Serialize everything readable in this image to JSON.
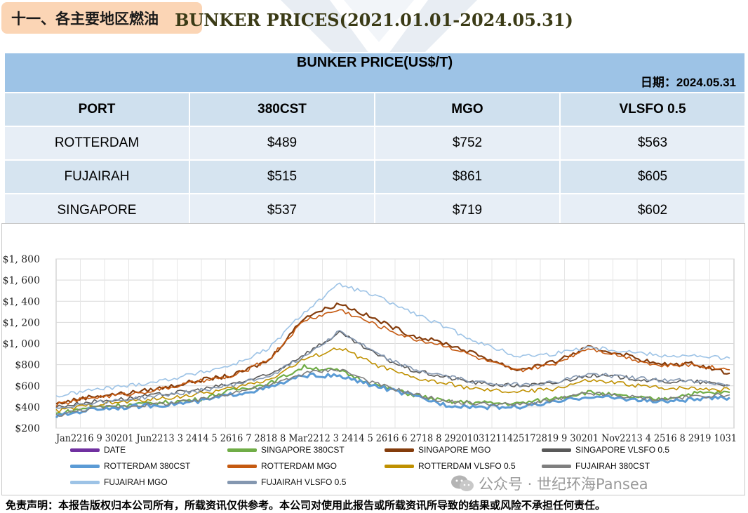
{
  "section_title": "十一、各主要地区燃油",
  "table": {
    "title": "BUNKER PRICE(US$/T)",
    "date_label": "日期：2024.05.31",
    "watermark": "Pansea",
    "headers": [
      "PORT",
      "380CST",
      "MGO",
      "VLSFO 0.5"
    ],
    "rows": [
      [
        "ROTTERDAM",
        "$489",
        "$752",
        "$563"
      ],
      [
        "FUJAIRAH",
        "$515",
        "$861",
        "$605"
      ],
      [
        "SINGAPORE",
        "$537",
        "$719",
        "$602"
      ]
    ]
  },
  "chart_data": {
    "type": "line",
    "title": "BUNKER PRICES(2021.01.01-2024.05.31)",
    "x_range": [
      "2021-01-01",
      "2024-05-31"
    ],
    "ylim": [
      200,
      1800
    ],
    "ytick_labels": [
      "$200",
      "$400",
      "$600",
      "$800",
      "$1, 000",
      "$1, 200",
      "$1, 400",
      "$1, 600",
      "$1, 800"
    ],
    "ytick_values": [
      200,
      400,
      600,
      800,
      1000,
      1200,
      1400,
      1600,
      1800
    ],
    "xtick_text": "Jan2216 9 30201 Jun2213 3 2414 5 2616 7 2818 8 Mar2212 3 2414 5 2616 6 2718 8 29201031211425172819 9 30201 Nov2213 4 2516 8 2919 1031",
    "grid": true,
    "legend_position": "bottom",
    "series": [
      {
        "name": "DATE",
        "color": "#7030a0",
        "values": []
      },
      {
        "name": "SINGAPORE 380CST",
        "color": "#70ad47",
        "values": [
          335,
          400,
          420,
          440,
          470,
          560,
          620,
          780,
          740,
          610,
          520,
          450,
          440,
          430,
          480,
          540,
          500,
          470,
          530,
          537
        ]
      },
      {
        "name": "SINGAPORE MGO",
        "color": "#843c0c",
        "values": [
          430,
          500,
          530,
          580,
          650,
          700,
          840,
          1250,
          1380,
          1230,
          1080,
          1000,
          880,
          750,
          820,
          960,
          900,
          800,
          810,
          719
        ]
      },
      {
        "name": "SINGAPORE VLSFO 0.5",
        "color": "#595959",
        "values": [
          400,
          450,
          480,
          520,
          560,
          620,
          700,
          900,
          1100,
          900,
          750,
          680,
          620,
          600,
          620,
          700,
          680,
          640,
          640,
          602
        ]
      },
      {
        "name": "ROTTERDAM 380CST",
        "color": "#5b9bd5",
        "values": [
          310,
          380,
          400,
          420,
          450,
          520,
          580,
          700,
          690,
          600,
          510,
          420,
          400,
          400,
          440,
          500,
          480,
          450,
          470,
          489
        ]
      },
      {
        "name": "ROTTERDAM MGO",
        "color": "#c55a11",
        "values": [
          420,
          490,
          520,
          570,
          640,
          690,
          850,
          1220,
          1320,
          1180,
          1050,
          980,
          850,
          740,
          800,
          960,
          880,
          790,
          800,
          752
        ]
      },
      {
        "name": "ROTTERDAM VLSFO 0.5",
        "color": "#bf9000",
        "values": [
          360,
          420,
          450,
          480,
          520,
          580,
          660,
          850,
          960,
          800,
          680,
          620,
          560,
          540,
          570,
          650,
          620,
          580,
          580,
          563
        ]
      },
      {
        "name": "FUJAIRAH  380CST",
        "color": "#7f7f7f",
        "values": [
          320,
          390,
          410,
          430,
          460,
          540,
          600,
          720,
          760,
          620,
          530,
          450,
          430,
          420,
          460,
          530,
          500,
          470,
          500,
          515
        ]
      },
      {
        "name": "FUJAIRAH MGO",
        "color": "#9dc3e6",
        "values": [
          500,
          560,
          600,
          650,
          720,
          800,
          950,
          1300,
          1560,
          1450,
          1300,
          1150,
          1000,
          880,
          900,
          970,
          930,
          890,
          880,
          861
        ]
      },
      {
        "name": "FUJAIRAH VLSFO 0.5",
        "color": "#8497b0",
        "values": [
          390,
          440,
          470,
          510,
          550,
          610,
          690,
          880,
          1120,
          910,
          760,
          690,
          630,
          610,
          630,
          710,
          690,
          650,
          650,
          605
        ]
      }
    ]
  },
  "wechat_label": "公众号 · 世纪环海Pansea",
  "disclaimer": "免责声明：本报告版权归本公司所有，所载资讯仅供参考。本公司对使用此报告或所载资讯所导致的结果或风险不承担任何责任。"
}
